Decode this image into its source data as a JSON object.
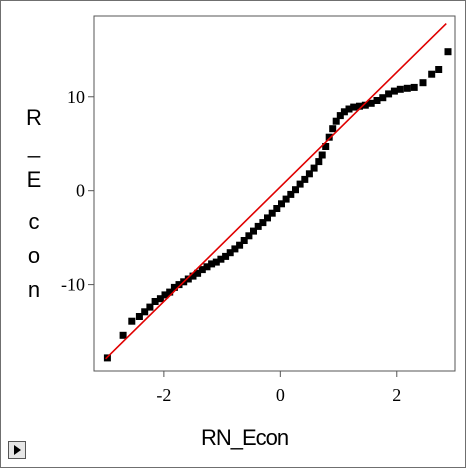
{
  "chart_data": {
    "type": "scatter",
    "title": "",
    "xlabel": "RN_Econ",
    "ylabel": "R_Econ",
    "xlim": [
      -3.2,
      3.0
    ],
    "ylim": [
      -19.2,
      18.6
    ],
    "xticks": [
      -2,
      0,
      2
    ],
    "yticks": [
      -10,
      0,
      10
    ],
    "xtick_labels": [
      "-2",
      "0",
      "2"
    ],
    "ytick_labels": [
      "-10",
      "0",
      "10"
    ],
    "grid": false,
    "marker_color": "#000000",
    "reference_line": {
      "color": "#e00000",
      "from": [
        -3.0,
        -17.9
      ],
      "to": [
        2.85,
        17.8
      ]
    },
    "series": [
      {
        "points": [
          [
            -2.97,
            -17.8
          ],
          [
            -2.7,
            -15.4
          ],
          [
            -2.55,
            -13.9
          ],
          [
            -2.42,
            -13.4
          ],
          [
            -2.33,
            -12.9
          ],
          [
            -2.24,
            -12.4
          ],
          [
            -2.15,
            -11.8
          ],
          [
            -2.06,
            -11.5
          ],
          [
            -1.98,
            -11.1
          ],
          [
            -1.9,
            -10.8
          ],
          [
            -1.82,
            -10.3
          ],
          [
            -1.74,
            -10.0
          ],
          [
            -1.66,
            -9.7
          ],
          [
            -1.58,
            -9.4
          ],
          [
            -1.5,
            -9.1
          ],
          [
            -1.42,
            -8.8
          ],
          [
            -1.34,
            -8.4
          ],
          [
            -1.26,
            -8.1
          ],
          [
            -1.18,
            -7.8
          ],
          [
            -1.1,
            -7.6
          ],
          [
            -1.02,
            -7.3
          ],
          [
            -0.94,
            -7.0
          ],
          [
            -0.86,
            -6.6
          ],
          [
            -0.78,
            -6.2
          ],
          [
            -0.7,
            -5.8
          ],
          [
            -0.62,
            -5.3
          ],
          [
            -0.54,
            -4.8
          ],
          [
            -0.46,
            -4.3
          ],
          [
            -0.38,
            -3.8
          ],
          [
            -0.3,
            -3.4
          ],
          [
            -0.22,
            -2.9
          ],
          [
            -0.14,
            -2.4
          ],
          [
            -0.06,
            -1.9
          ],
          [
            0.02,
            -1.4
          ],
          [
            0.1,
            -0.9
          ],
          [
            0.18,
            -0.4
          ],
          [
            0.26,
            0.1
          ],
          [
            0.34,
            0.7
          ],
          [
            0.42,
            1.2
          ],
          [
            0.5,
            1.8
          ],
          [
            0.58,
            2.4
          ],
          [
            0.66,
            3.1
          ],
          [
            0.72,
            3.8
          ],
          [
            0.78,
            4.7
          ],
          [
            0.84,
            5.7
          ],
          [
            0.9,
            6.6
          ],
          [
            0.96,
            7.4
          ],
          [
            1.03,
            8.0
          ],
          [
            1.1,
            8.4
          ],
          [
            1.18,
            8.7
          ],
          [
            1.26,
            8.9
          ],
          [
            1.36,
            9.0
          ],
          [
            1.46,
            9.1
          ],
          [
            1.56,
            9.3
          ],
          [
            1.66,
            9.6
          ],
          [
            1.76,
            9.9
          ],
          [
            1.86,
            10.3
          ],
          [
            1.96,
            10.6
          ],
          [
            2.06,
            10.8
          ],
          [
            2.18,
            10.9
          ],
          [
            2.3,
            11.0
          ],
          [
            2.45,
            11.5
          ],
          [
            2.6,
            12.4
          ],
          [
            2.72,
            12.9
          ],
          [
            2.88,
            14.8
          ]
        ]
      }
    ]
  },
  "controls": {
    "expand_icon": "triangle-right-icon"
  }
}
